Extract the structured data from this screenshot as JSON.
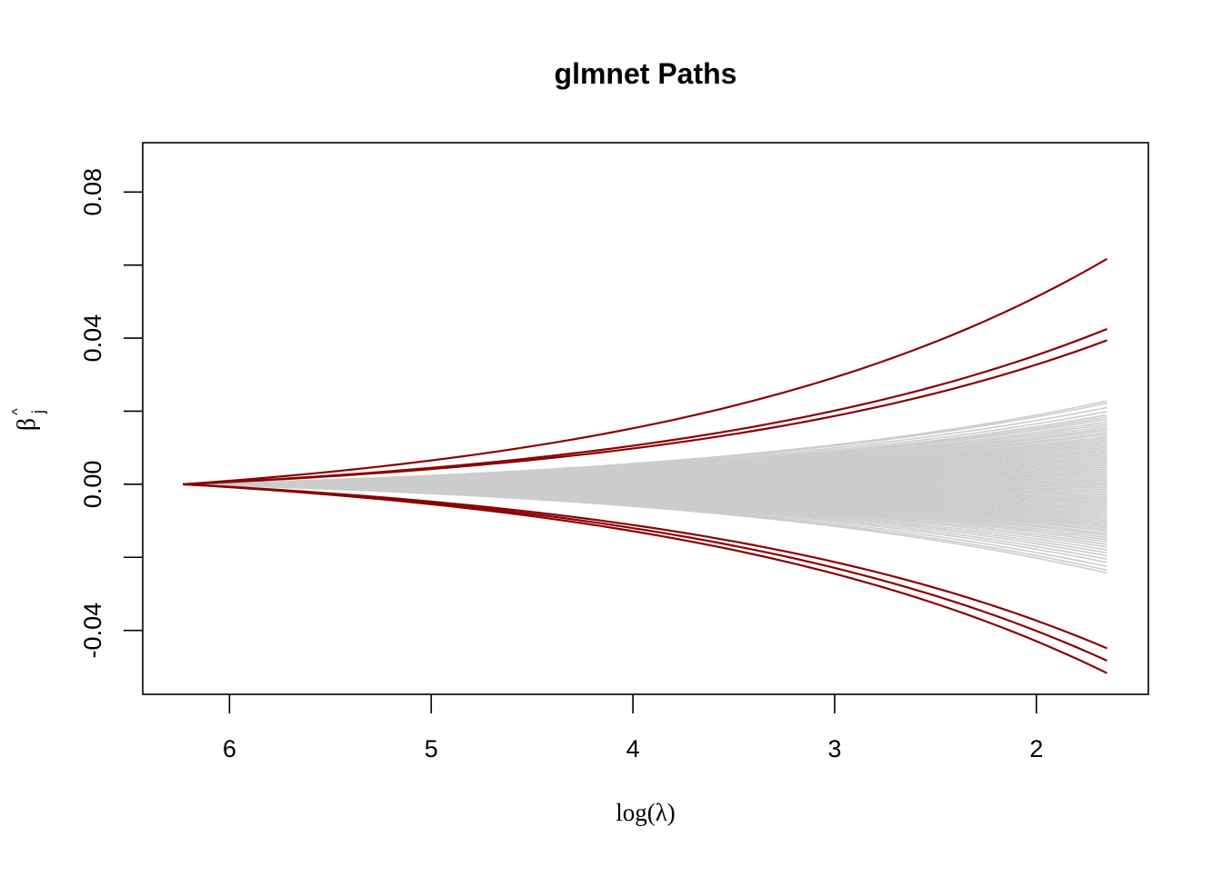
{
  "chart_data": {
    "type": "line",
    "title": "glmnet Paths",
    "xlabel": "log(λ)",
    "ylabel_base": "β",
    "ylabel_sub": "j",
    "ylabel_hat": "^",
    "x_reversed": true,
    "xlim": [
      6.43,
      1.445
    ],
    "ylim": [
      -0.0575,
      0.0935
    ],
    "x_ticks": [
      6,
      5,
      4,
      3,
      2
    ],
    "x_tick_labels": [
      "6",
      "5",
      "4",
      "3",
      "2"
    ],
    "y_ticks": [
      -0.04,
      -0.02,
      0.0,
      0.02,
      0.04,
      0.06,
      0.08
    ],
    "y_tick_labels": [
      "-0.04",
      "",
      "0.00",
      "",
      "0.04",
      "",
      "0.08"
    ],
    "x_range": [
      6.23,
      1.65
    ],
    "grid": false,
    "legend": "none",
    "highlight_color": "#8B0000",
    "background_color": "#CCCCCC",
    "series_highlight": [
      {
        "end_value": 0.0617
      },
      {
        "end_value": 0.0425
      },
      {
        "end_value": 0.0394
      },
      {
        "end_value": -0.0449
      },
      {
        "end_value": -0.0483
      },
      {
        "end_value": -0.0517
      }
    ],
    "series_background_end_values": [
      0.0228,
      0.0222,
      0.021,
      0.0199,
      0.019,
      0.0184,
      0.0178,
      0.0171,
      0.0165,
      0.0159,
      0.0153,
      0.0148,
      0.0142,
      0.0137,
      0.0131,
      0.0126,
      0.0121,
      0.0116,
      0.0111,
      0.0106,
      0.0101,
      0.0096,
      0.0091,
      0.0086,
      0.0081,
      0.0076,
      0.0071,
      0.0066,
      0.0061,
      0.0056,
      0.0051,
      0.0046,
      0.0041,
      0.0036,
      0.0031,
      0.0026,
      0.0021,
      0.0016,
      0.0011,
      0.0006,
      0.0001,
      -0.0004,
      -0.0009,
      -0.0014,
      -0.0019,
      -0.0024,
      -0.0029,
      -0.0034,
      -0.0039,
      -0.0044,
      -0.0049,
      -0.0054,
      -0.0059,
      -0.0064,
      -0.0069,
      -0.0074,
      -0.0079,
      -0.0084,
      -0.0089,
      -0.0094,
      -0.0099,
      -0.0104,
      -0.0109,
      -0.0114,
      -0.0119,
      -0.0124,
      -0.0129,
      -0.0135,
      -0.014,
      -0.0146,
      -0.0152,
      -0.0158,
      -0.0165,
      -0.0172,
      -0.018,
      -0.0188,
      -0.0196,
      -0.0205,
      -0.0214,
      -0.0225,
      -0.0235,
      -0.0243
    ]
  }
}
